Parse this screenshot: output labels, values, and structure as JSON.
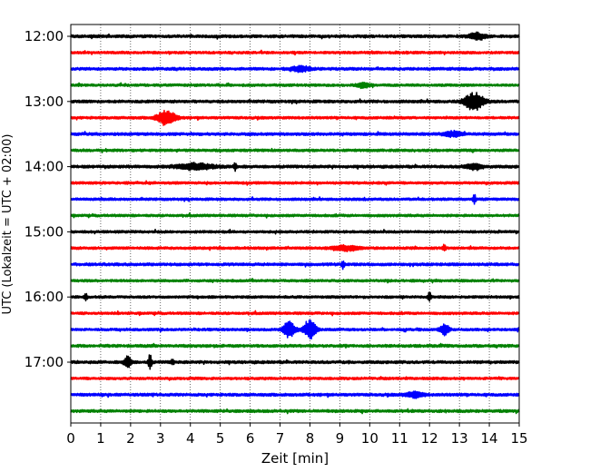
{
  "chart_data": {
    "type": "line",
    "title": "",
    "xlabel": "Zeit  [min]",
    "ylabel": "UTC (Lokalzeit = UTC + 02:00)",
    "xlim": [
      0,
      15
    ],
    "xticks": [
      0,
      1,
      2,
      3,
      4,
      5,
      6,
      7,
      8,
      9,
      10,
      11,
      12,
      13,
      14,
      15
    ],
    "yticks": [
      {
        "label": "12:00",
        "row": 0
      },
      {
        "label": "13:00",
        "row": 4
      },
      {
        "label": "14:00",
        "row": 8
      },
      {
        "label": "15:00",
        "row": 12
      },
      {
        "label": "16:00",
        "row": 16
      },
      {
        "label": "17:00",
        "row": 20
      }
    ],
    "grid": {
      "x": true,
      "y": false,
      "style": "dotted"
    },
    "line_minutes": 15,
    "color_cycle": [
      "#000000",
      "#ff0000",
      "#0000ff",
      "#008000"
    ],
    "traces": [
      {
        "start": "12:00",
        "color": "#000000",
        "noise": 0.5,
        "events": [
          {
            "t": 13.6,
            "amp": 1.3,
            "w": 0.25
          }
        ]
      },
      {
        "start": "12:15",
        "color": "#ff0000",
        "noise": 0.45,
        "events": []
      },
      {
        "start": "12:30",
        "color": "#0000ff",
        "noise": 0.5,
        "events": [
          {
            "t": 7.7,
            "amp": 1.0,
            "w": 0.3
          }
        ]
      },
      {
        "start": "12:45",
        "color": "#008000",
        "noise": 0.45,
        "events": [
          {
            "t": 9.8,
            "amp": 1.0,
            "w": 0.2
          }
        ]
      },
      {
        "start": "13:00",
        "color": "#000000",
        "noise": 0.5,
        "events": [
          {
            "t": 13.5,
            "amp": 3.5,
            "w": 0.3
          }
        ]
      },
      {
        "start": "13:15",
        "color": "#ff0000",
        "noise": 0.45,
        "events": [
          {
            "t": 3.2,
            "amp": 2.8,
            "w": 0.3
          }
        ]
      },
      {
        "start": "13:30",
        "color": "#0000ff",
        "noise": 0.5,
        "events": [
          {
            "t": 12.8,
            "amp": 1.0,
            "w": 0.3
          }
        ]
      },
      {
        "start": "13:45",
        "color": "#008000",
        "noise": 0.45,
        "events": []
      },
      {
        "start": "14:00",
        "color": "#000000",
        "noise": 0.5,
        "events": [
          {
            "t": 4.2,
            "amp": 1.2,
            "w": 0.6
          },
          {
            "t": 5.5,
            "amp": 1.6,
            "w": 0.05
          },
          {
            "t": 13.5,
            "amp": 1.0,
            "w": 0.3
          }
        ]
      },
      {
        "start": "14:15",
        "color": "#ff0000",
        "noise": 0.45,
        "events": []
      },
      {
        "start": "14:30",
        "color": "#0000ff",
        "noise": 0.45,
        "events": [
          {
            "t": 13.5,
            "amp": 1.6,
            "w": 0.05
          }
        ]
      },
      {
        "start": "14:45",
        "color": "#008000",
        "noise": 0.45,
        "events": []
      },
      {
        "start": "15:00",
        "color": "#000000",
        "noise": 0.45,
        "events": []
      },
      {
        "start": "15:15",
        "color": "#ff0000",
        "noise": 0.45,
        "events": [
          {
            "t": 9.2,
            "amp": 1.0,
            "w": 0.4
          },
          {
            "t": 12.5,
            "amp": 1.4,
            "w": 0.05
          }
        ]
      },
      {
        "start": "15:30",
        "color": "#0000ff",
        "noise": 0.5,
        "events": [
          {
            "t": 9.1,
            "amp": 1.6,
            "w": 0.05
          }
        ]
      },
      {
        "start": "15:45",
        "color": "#008000",
        "noise": 0.45,
        "events": []
      },
      {
        "start": "16:00",
        "color": "#000000",
        "noise": 0.45,
        "events": [
          {
            "t": 0.5,
            "amp": 1.5,
            "w": 0.05
          },
          {
            "t": 12.0,
            "amp": 1.8,
            "w": 0.05
          }
        ]
      },
      {
        "start": "16:15",
        "color": "#ff0000",
        "noise": 0.45,
        "events": []
      },
      {
        "start": "16:30",
        "color": "#0000ff",
        "noise": 0.45,
        "events": [
          {
            "t": 7.3,
            "amp": 3.0,
            "w": 0.2
          },
          {
            "t": 8.0,
            "amp": 3.6,
            "w": 0.2
          },
          {
            "t": 12.5,
            "amp": 2.2,
            "w": 0.15
          }
        ]
      },
      {
        "start": "16:45",
        "color": "#008000",
        "noise": 0.5,
        "events": []
      },
      {
        "start": "17:00",
        "color": "#000000",
        "noise": 0.5,
        "events": [
          {
            "t": 1.9,
            "amp": 2.2,
            "w": 0.12
          },
          {
            "t": 2.65,
            "amp": 3.2,
            "w": 0.06
          },
          {
            "t": 3.4,
            "amp": 1.2,
            "w": 0.05
          }
        ]
      },
      {
        "start": "17:15",
        "color": "#ff0000",
        "noise": 0.45,
        "events": []
      },
      {
        "start": "17:30",
        "color": "#0000ff",
        "noise": 0.5,
        "events": [
          {
            "t": 11.5,
            "amp": 1.0,
            "w": 0.3
          }
        ]
      },
      {
        "start": "17:45",
        "color": "#008000",
        "noise": 0.5,
        "events": []
      }
    ]
  }
}
